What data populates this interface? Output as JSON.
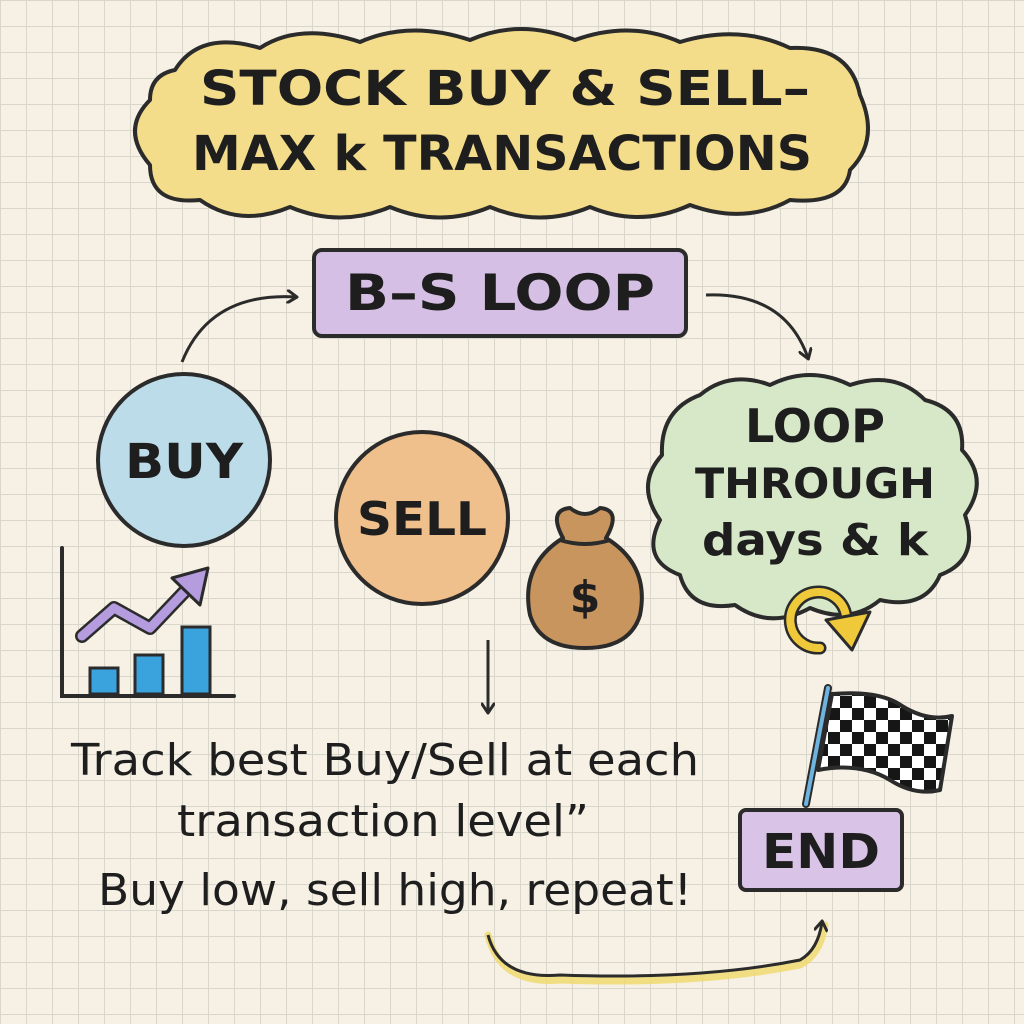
{
  "title": {
    "line1": "STOCK BUY & SELL–",
    "line2": "MAX k TRANSACTIONS"
  },
  "nodes": {
    "loop_box": "B–S LOOP",
    "buy": "BUY",
    "sell": "SELL",
    "cloud_line1": "LOOP",
    "cloud_line2": "THROUGH",
    "cloud_line3": "days & k",
    "end": "END"
  },
  "notes": {
    "track_line1": "Track best Buy/Sell at each",
    "track_line2": "transaction level”",
    "motto": "Buy low, sell high, repeat!"
  },
  "icons": {
    "money_bag": "money-bag-icon",
    "money_bag_symbol": "$",
    "chart": "rising-bar-chart-icon",
    "refresh": "circular-arrow-icon",
    "flag": "checkered-flag-icon"
  },
  "colors": {
    "title_fill": "#f3dc8a",
    "loop_fill": "#d6bfe4",
    "buy_fill": "#bcdcea",
    "sell_fill": "#efbf8c",
    "cloud_fill": "#d6e8c8",
    "end_fill": "#d9c3e6",
    "bag_fill": "#c9955f",
    "accent_yellow": "#f0c93a"
  }
}
